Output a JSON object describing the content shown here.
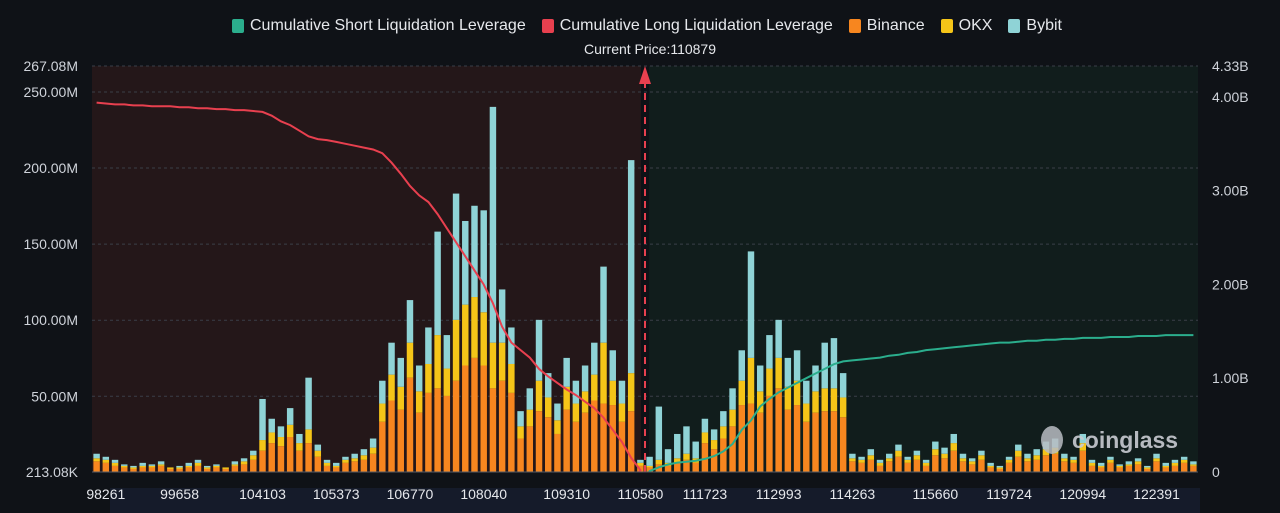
{
  "legend": [
    {
      "label": "Cumulative Short Liquidation Leverage",
      "color": "#2bae8d"
    },
    {
      "label": "Cumulative Long Liquidation Leverage",
      "color": "#e8404f"
    },
    {
      "label": "Binance",
      "color": "#f7861f"
    },
    {
      "label": "OKX",
      "color": "#f5c518"
    },
    {
      "label": "Bybit",
      "color": "#8fd3d6"
    }
  ],
  "current_price_label": "Current Price:110879",
  "watermark": "coinglass",
  "chart_data": {
    "type": "bar",
    "stacked": true,
    "left_axis": {
      "ticks": [
        "213.08K",
        "50.00M",
        "100.00M",
        "150.00M",
        "200.00M",
        "250.00M",
        "267.08M"
      ],
      "values": [
        0.21308,
        50,
        100,
        150,
        200,
        250,
        267.08
      ],
      "range": [
        0.21308,
        267.08
      ],
      "unit": "M"
    },
    "right_axis": {
      "ticks": [
        "0",
        "1.00B",
        "2.00B",
        "3.00B",
        "4.00B",
        "4.33B"
      ],
      "values": [
        0,
        1,
        2,
        3,
        4,
        4.33
      ],
      "range": [
        0,
        4.33
      ],
      "unit": "B"
    },
    "x_ticks": [
      {
        "label": "98261",
        "index": 1
      },
      {
        "label": "99658",
        "index": 9
      },
      {
        "label": "104103",
        "index": 18
      },
      {
        "label": "105373",
        "index": 26
      },
      {
        "label": "106770",
        "index": 34
      },
      {
        "label": "108040",
        "index": 42
      },
      {
        "label": "109310",
        "index": 51
      },
      {
        "label": "110580",
        "index": 59
      },
      {
        "label": "111723",
        "index": 66
      },
      {
        "label": "112993",
        "index": 74
      },
      {
        "label": "114263",
        "index": 82
      },
      {
        "label": "115660",
        "index": 91
      },
      {
        "label": "119724",
        "index": 99
      },
      {
        "label": "120994",
        "index": 107
      },
      {
        "label": "122391",
        "index": 115
      }
    ],
    "current_price_index": 60,
    "grid": true,
    "legend_position": "top",
    "series": [
      {
        "name": "Binance",
        "color": "#f7861f",
        "values": [
          7,
          6,
          4,
          3,
          2,
          3,
          3,
          4,
          2,
          2,
          3,
          4,
          2,
          3,
          2,
          4,
          5,
          8,
          14,
          19,
          17,
          23,
          14,
          19,
          10,
          4,
          3,
          6,
          7,
          8,
          12,
          33,
          47,
          41,
          62,
          39,
          52,
          55,
          50,
          60,
          70,
          75,
          70,
          55,
          60,
          52,
          22,
          30,
          40,
          36,
          25,
          41,
          33,
          39,
          47,
          45,
          44,
          33,
          40,
          4,
          3,
          5,
          4,
          6,
          8,
          6,
          19,
          15,
          22,
          30,
          44,
          45,
          39,
          50,
          55,
          41,
          44,
          33,
          39,
          40,
          40,
          36,
          7,
          6,
          8,
          4,
          7,
          10,
          6,
          8,
          4,
          11,
          9,
          14,
          7,
          5,
          8,
          3,
          2,
          6,
          10,
          7,
          8,
          11,
          12,
          7,
          6,
          14,
          4,
          3,
          6,
          3,
          4,
          5,
          2,
          7,
          3,
          4,
          6,
          4
        ]
      },
      {
        "name": "OKX",
        "color": "#f5c518",
        "values": [
          2,
          2,
          2,
          1,
          1,
          1,
          1,
          1,
          1,
          1,
          1,
          2,
          1,
          1,
          1,
          1,
          2,
          3,
          7,
          7,
          6,
          8,
          5,
          9,
          4,
          2,
          1,
          2,
          2,
          3,
          4,
          12,
          17,
          15,
          23,
          14,
          19,
          35,
          18,
          40,
          40,
          40,
          35,
          30,
          25,
          19,
          8,
          11,
          20,
          13,
          9,
          15,
          12,
          14,
          17,
          40,
          16,
          12,
          25,
          2,
          1,
          3,
          2,
          3,
          4,
          3,
          7,
          6,
          8,
          11,
          16,
          30,
          14,
          18,
          20,
          15,
          16,
          12,
          14,
          15,
          15,
          13,
          2,
          2,
          3,
          2,
          2,
          4,
          2,
          3,
          2,
          4,
          3,
          5,
          2,
          2,
          3,
          1,
          1,
          2,
          4,
          2,
          3,
          4,
          4,
          2,
          2,
          5,
          2,
          1,
          2,
          1,
          1,
          2,
          1,
          2,
          1,
          2,
          2,
          1
        ]
      },
      {
        "name": "Bybit",
        "color": "#8fd3d6",
        "values": [
          3,
          2,
          2,
          1,
          1,
          2,
          1,
          2,
          0,
          1,
          2,
          2,
          1,
          1,
          0,
          2,
          2,
          3,
          27,
          9,
          7,
          11,
          6,
          34,
          4,
          2,
          2,
          2,
          3,
          4,
          6,
          15,
          21,
          19,
          28,
          17,
          24,
          68,
          22,
          83,
          55,
          60,
          67,
          155,
          35,
          24,
          10,
          14,
          40,
          16,
          11,
          19,
          15,
          17,
          21,
          50,
          20,
          15,
          140,
          2,
          6,
          35,
          9,
          16,
          18,
          11,
          9,
          7,
          10,
          14,
          20,
          70,
          17,
          22,
          25,
          19,
          20,
          15,
          17,
          30,
          33,
          16,
          3,
          2,
          4,
          2,
          3,
          4,
          2,
          3,
          2,
          5,
          4,
          6,
          3,
          2,
          3,
          2,
          1,
          2,
          4,
          3,
          4,
          5,
          6,
          3,
          2,
          6,
          2,
          2,
          2,
          1,
          2,
          2,
          1,
          3,
          2,
          2,
          2,
          2
        ]
      },
      {
        "name": "Cumulative Long Liquidation Leverage",
        "color": "#e8404f",
        "axis": "right",
        "start_index": 0,
        "values": [
          3.94,
          3.93,
          3.92,
          3.92,
          3.91,
          3.91,
          3.9,
          3.9,
          3.9,
          3.89,
          3.89,
          3.88,
          3.88,
          3.87,
          3.87,
          3.86,
          3.86,
          3.85,
          3.84,
          3.8,
          3.74,
          3.7,
          3.64,
          3.58,
          3.55,
          3.54,
          3.52,
          3.5,
          3.48,
          3.46,
          3.44,
          3.4,
          3.3,
          3.18,
          3.05,
          2.95,
          2.88,
          2.75,
          2.6,
          2.45,
          2.3,
          2.15,
          2.0,
          1.8,
          1.55,
          1.38,
          1.3,
          1.22,
          1.1,
          1.02,
          0.95,
          0.88,
          0.82,
          0.75,
          0.68,
          0.58,
          0.45,
          0.32,
          0.15,
          0.02
        ]
      },
      {
        "name": "Cumulative Short Liquidation Leverage",
        "color": "#2bae8d",
        "axis": "right",
        "start_index": 60,
        "values": [
          0.01,
          0.05,
          0.08,
          0.1,
          0.11,
          0.12,
          0.14,
          0.17,
          0.22,
          0.3,
          0.45,
          0.55,
          0.7,
          0.78,
          0.85,
          0.9,
          0.95,
          1.0,
          1.05,
          1.1,
          1.15,
          1.18,
          1.19,
          1.2,
          1.21,
          1.22,
          1.24,
          1.25,
          1.27,
          1.28,
          1.3,
          1.31,
          1.32,
          1.33,
          1.34,
          1.35,
          1.36,
          1.37,
          1.38,
          1.38,
          1.39,
          1.4,
          1.4,
          1.41,
          1.41,
          1.42,
          1.42,
          1.43,
          1.43,
          1.43,
          1.44,
          1.44,
          1.44,
          1.45,
          1.45,
          1.45,
          1.46,
          1.46,
          1.46,
          1.46
        ]
      }
    ]
  }
}
